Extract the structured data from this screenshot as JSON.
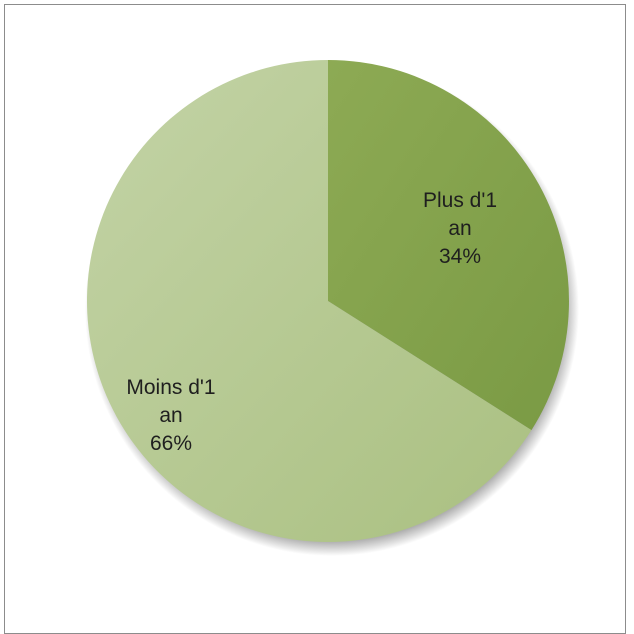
{
  "chart_data": {
    "type": "pie",
    "categories": [
      "Plus d'1 an",
      "Moins d'1 an"
    ],
    "values": [
      34,
      66
    ],
    "units": "%",
    "slices": [
      {
        "label_lines": [
          "Plus d'1",
          "an"
        ],
        "percent_label": "34%",
        "value": 34,
        "color": "#82a04a"
      },
      {
        "label_lines": [
          "Moins d'1",
          "an"
        ],
        "percent_label": "66%",
        "value": 66,
        "color": "#b5c98f"
      }
    ],
    "title": "",
    "legend": "none",
    "start_angle": "12 o'clock, clockwise"
  }
}
